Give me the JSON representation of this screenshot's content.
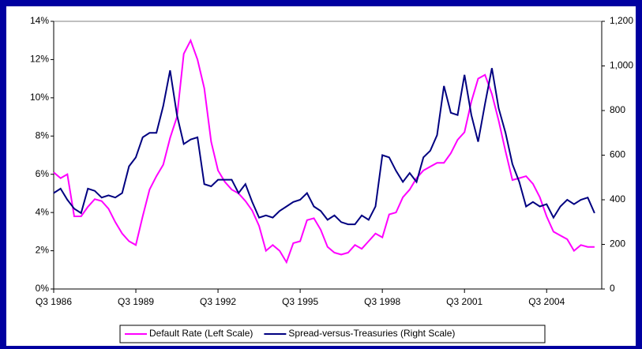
{
  "chart_data": {
    "type": "line",
    "categories": [
      "Q3 1986",
      null,
      null,
      null,
      null,
      null,
      null,
      null,
      null,
      null,
      null,
      null,
      "Q3 1989",
      null,
      null,
      null,
      null,
      null,
      null,
      null,
      null,
      null,
      null,
      null,
      "Q3 1992",
      null,
      null,
      null,
      null,
      null,
      null,
      null,
      null,
      null,
      null,
      null,
      "Q3 1995",
      null,
      null,
      null,
      null,
      null,
      null,
      null,
      null,
      null,
      null,
      null,
      "Q3 1998",
      null,
      null,
      null,
      null,
      null,
      null,
      null,
      null,
      null,
      null,
      null,
      "Q3 2001",
      null,
      null,
      null,
      null,
      null,
      null,
      null,
      null,
      null,
      null,
      null,
      "Q3 2004",
      null,
      null,
      null,
      null,
      null,
      null,
      null
    ],
    "series": [
      {
        "name": "Default Rate (Left Scale)",
        "color": "#ff00ff",
        "values": [
          6.1,
          5.8,
          6.0,
          3.8,
          3.8,
          4.3,
          4.7,
          4.6,
          4.2,
          3.5,
          2.9,
          2.5,
          2.3,
          3.8,
          5.2,
          5.9,
          6.5,
          7.9,
          9.0,
          12.3,
          13.0,
          12.0,
          10.5,
          7.7,
          6.2,
          5.6,
          5.2,
          5.0,
          4.6,
          4.1,
          3.3,
          2.0,
          2.3,
          2.0,
          1.4,
          2.4,
          2.5,
          3.6,
          3.7,
          3.1,
          2.2,
          1.9,
          1.8,
          1.9,
          2.3,
          2.1,
          2.5,
          2.9,
          2.7,
          3.9,
          4.0,
          4.8,
          5.2,
          5.8,
          6.2,
          6.4,
          6.6,
          6.6,
          7.1,
          7.8,
          8.2,
          9.8,
          11.0,
          11.2,
          10.2,
          8.8,
          7.2,
          5.7,
          5.8,
          5.9,
          5.5,
          4.8,
          3.8,
          3.0,
          2.8,
          2.6,
          2.0,
          2.3,
          2.2,
          2.2
        ]
      },
      {
        "name": "Spread-versus-Treasuries (Right Scale)",
        "color": "#000080",
        "axis": "y2",
        "values": [
          430,
          450,
          400,
          360,
          340,
          450,
          440,
          410,
          420,
          410,
          430,
          550,
          590,
          680,
          700,
          700,
          820,
          980,
          780,
          650,
          670,
          680,
          470,
          460,
          490,
          490,
          490,
          430,
          470,
          390,
          320,
          330,
          320,
          350,
          370,
          390,
          400,
          430,
          370,
          350,
          310,
          330,
          300,
          290,
          290,
          330,
          310,
          370,
          600,
          590,
          530,
          480,
          520,
          480,
          590,
          620,
          690,
          910,
          790,
          780,
          960,
          780,
          660,
          830,
          990,
          810,
          700,
          560,
          480,
          370,
          390,
          370,
          380,
          320,
          370,
          400,
          380,
          400,
          410,
          340
        ]
      }
    ],
    "ylim": [
      0,
      14
    ],
    "yticks": [
      {
        "value": 0,
        "label": "0%"
      },
      {
        "value": 2,
        "label": "2%"
      },
      {
        "value": 4,
        "label": "4%"
      },
      {
        "value": 6,
        "label": "6%"
      },
      {
        "value": 8,
        "label": "8%"
      },
      {
        "value": 10,
        "label": "10%"
      },
      {
        "value": 12,
        "label": "12%"
      },
      {
        "value": 14,
        "label": "14%"
      }
    ],
    "y2lim": [
      0,
      1200
    ],
    "y2ticks": [
      0,
      200,
      400,
      600,
      800,
      {
        "value": 1000,
        "label": "1,000"
      },
      {
        "value": 1200,
        "label": "1,200"
      }
    ],
    "grid": false,
    "legend": "bottom"
  }
}
